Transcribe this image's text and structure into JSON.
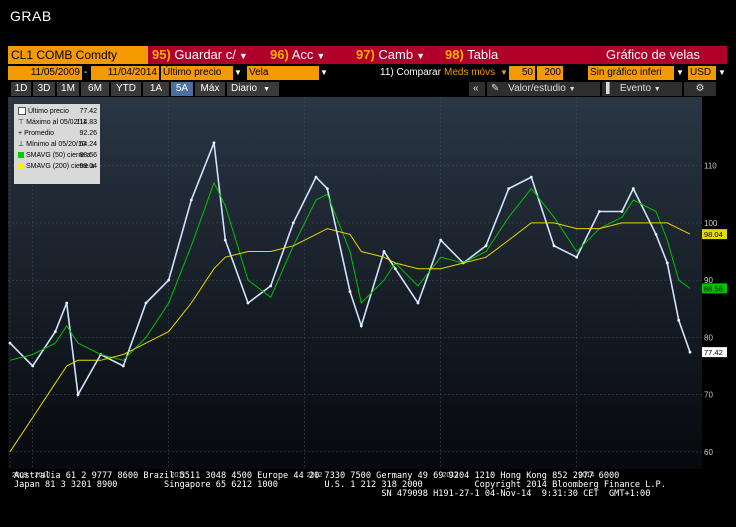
{
  "window": {
    "title": "GRAB"
  },
  "toolbar": {
    "ticker": "CL1 COMB Comdty",
    "menu": [
      {
        "num": "95)",
        "label": "Guardar c/"
      },
      {
        "num": "96)",
        "label": "Acc"
      },
      {
        "num": "97)",
        "label": "Camb"
      },
      {
        "num": "98)",
        "label": "Tabla"
      }
    ],
    "chart_title": "Gráfico de velas"
  },
  "params": {
    "start_date": "11/05/2009",
    "end_date": "11/04/2014",
    "price_field": "Último precio",
    "chart_type": "Vela",
    "compare_label": "11) Comparar",
    "compare_value": "Meds móvs",
    "ma_short": "50",
    "ma_long": "200",
    "option": "Sin gráfico inferi",
    "currency": "USD"
  },
  "ranges": {
    "items": [
      "1D",
      "3D",
      "1M",
      "6M",
      "YTD",
      "1A",
      "5A",
      "Máx"
    ],
    "selected": "5A",
    "frequency": "Diario"
  },
  "tools": {
    "collapse": "«",
    "value_study": "Valor/estudio",
    "event": "Evento",
    "settings": "⚙"
  },
  "legend": {
    "rows": [
      {
        "label": "Último precio",
        "value": "77.42",
        "color": "#ffffff"
      },
      {
        "label": "Máximo al 05/02/11",
        "value": "114.83",
        "color": ""
      },
      {
        "label": "Promedio",
        "value": "92.26",
        "color": ""
      },
      {
        "label": "Mínimo al 05/20/10",
        "value": "64.24",
        "color": ""
      },
      {
        "label": "SMAVG (50) cierre a",
        "value": "88.56",
        "color": "#00cc00"
      },
      {
        "label": "SMAVG (200) cierre a",
        "value": "98.04",
        "color": "#ffee00"
      }
    ]
  },
  "chart_data": {
    "type": "line",
    "x": [
      "2009-11",
      "2010-01",
      "2010-03",
      "2010-04",
      "2010-05",
      "2010-07",
      "2010-09",
      "2010-11",
      "2011-01",
      "2011-03",
      "2011-05",
      "2011-06",
      "2011-08",
      "2011-10",
      "2011-12",
      "2012-02",
      "2012-03",
      "2012-05",
      "2012-06",
      "2012-08",
      "2012-09",
      "2012-11",
      "2013-01",
      "2013-03",
      "2013-05",
      "2013-07",
      "2013-09",
      "2013-11",
      "2014-01",
      "2014-03",
      "2014-05",
      "2014-06",
      "2014-08",
      "2014-09",
      "2014-10",
      "2014-11"
    ],
    "series": [
      {
        "name": "Último precio",
        "color": "#cfe3ff",
        "values": [
          79,
          75,
          81,
          86,
          70,
          77,
          75,
          86,
          90,
          104,
          114,
          97,
          86,
          89,
          100,
          108,
          106,
          88,
          82,
          95,
          92,
          86,
          97,
          93,
          96,
          106,
          108,
          96,
          94,
          102,
          102,
          106,
          98,
          93,
          83,
          77.42
        ]
      },
      {
        "name": "SMAVG (50) cierre a",
        "color": "#00c000",
        "values": [
          76,
          77,
          79,
          82,
          79,
          77,
          76,
          80,
          86,
          96,
          107,
          103,
          90,
          87,
          96,
          104,
          105,
          95,
          86,
          90,
          93,
          89,
          94,
          93,
          95,
          101,
          106,
          101,
          95,
          99,
          101,
          104,
          102,
          97,
          90,
          88.56
        ]
      },
      {
        "name": "SMAVG (200) cierre a",
        "color": "#e6d800",
        "values": [
          60,
          66,
          72,
          75,
          76,
          76,
          77,
          79,
          81,
          86,
          92,
          94,
          95,
          95,
          96,
          98,
          99,
          98,
          95,
          94,
          93,
          92,
          92,
          93,
          94,
          97,
          100,
          100,
          99,
          99,
          100,
          100,
          100,
          100,
          99,
          98.04
        ]
      }
    ],
    "ylim": [
      57,
      122
    ],
    "yticks": [
      60,
      70,
      80,
      90,
      100,
      110
    ],
    "year_labels": [
      {
        "label": "2009",
        "x": "2009-11"
      },
      {
        "label": "2010",
        "x": "2010-01"
      },
      {
        "label": "2011",
        "x": "2011-01"
      },
      {
        "label": "2012",
        "x": "2012-01"
      },
      {
        "label": "2013",
        "x": "2013-01"
      },
      {
        "label": "2014",
        "x": "2014-01"
      }
    ],
    "last_value_tags": [
      {
        "value": "98.04",
        "color": "#e6d800"
      },
      {
        "value": "88.56",
        "color": "#00c000"
      },
      {
        "value": "77.42",
        "color": "#ffffff"
      }
    ],
    "grid": true
  },
  "footer": {
    "line1": "Australia 61 2 9777 8600 Brazil 5511 3048 4500 Europe 44 20 7330 7500 Germany 49 69 9204 1210 Hong Kong 852 2977 6000",
    "line2": "Japan 81 3 3201 8900         Singapore 65 6212 1000         U.S. 1 212 318 2000          Copyright 2014 Bloomberg Finance L.P.",
    "line3": "                                                                       SN 479098 H191-27-1 04-Nov-14  9:31:30 CET  GMT+1:00"
  }
}
